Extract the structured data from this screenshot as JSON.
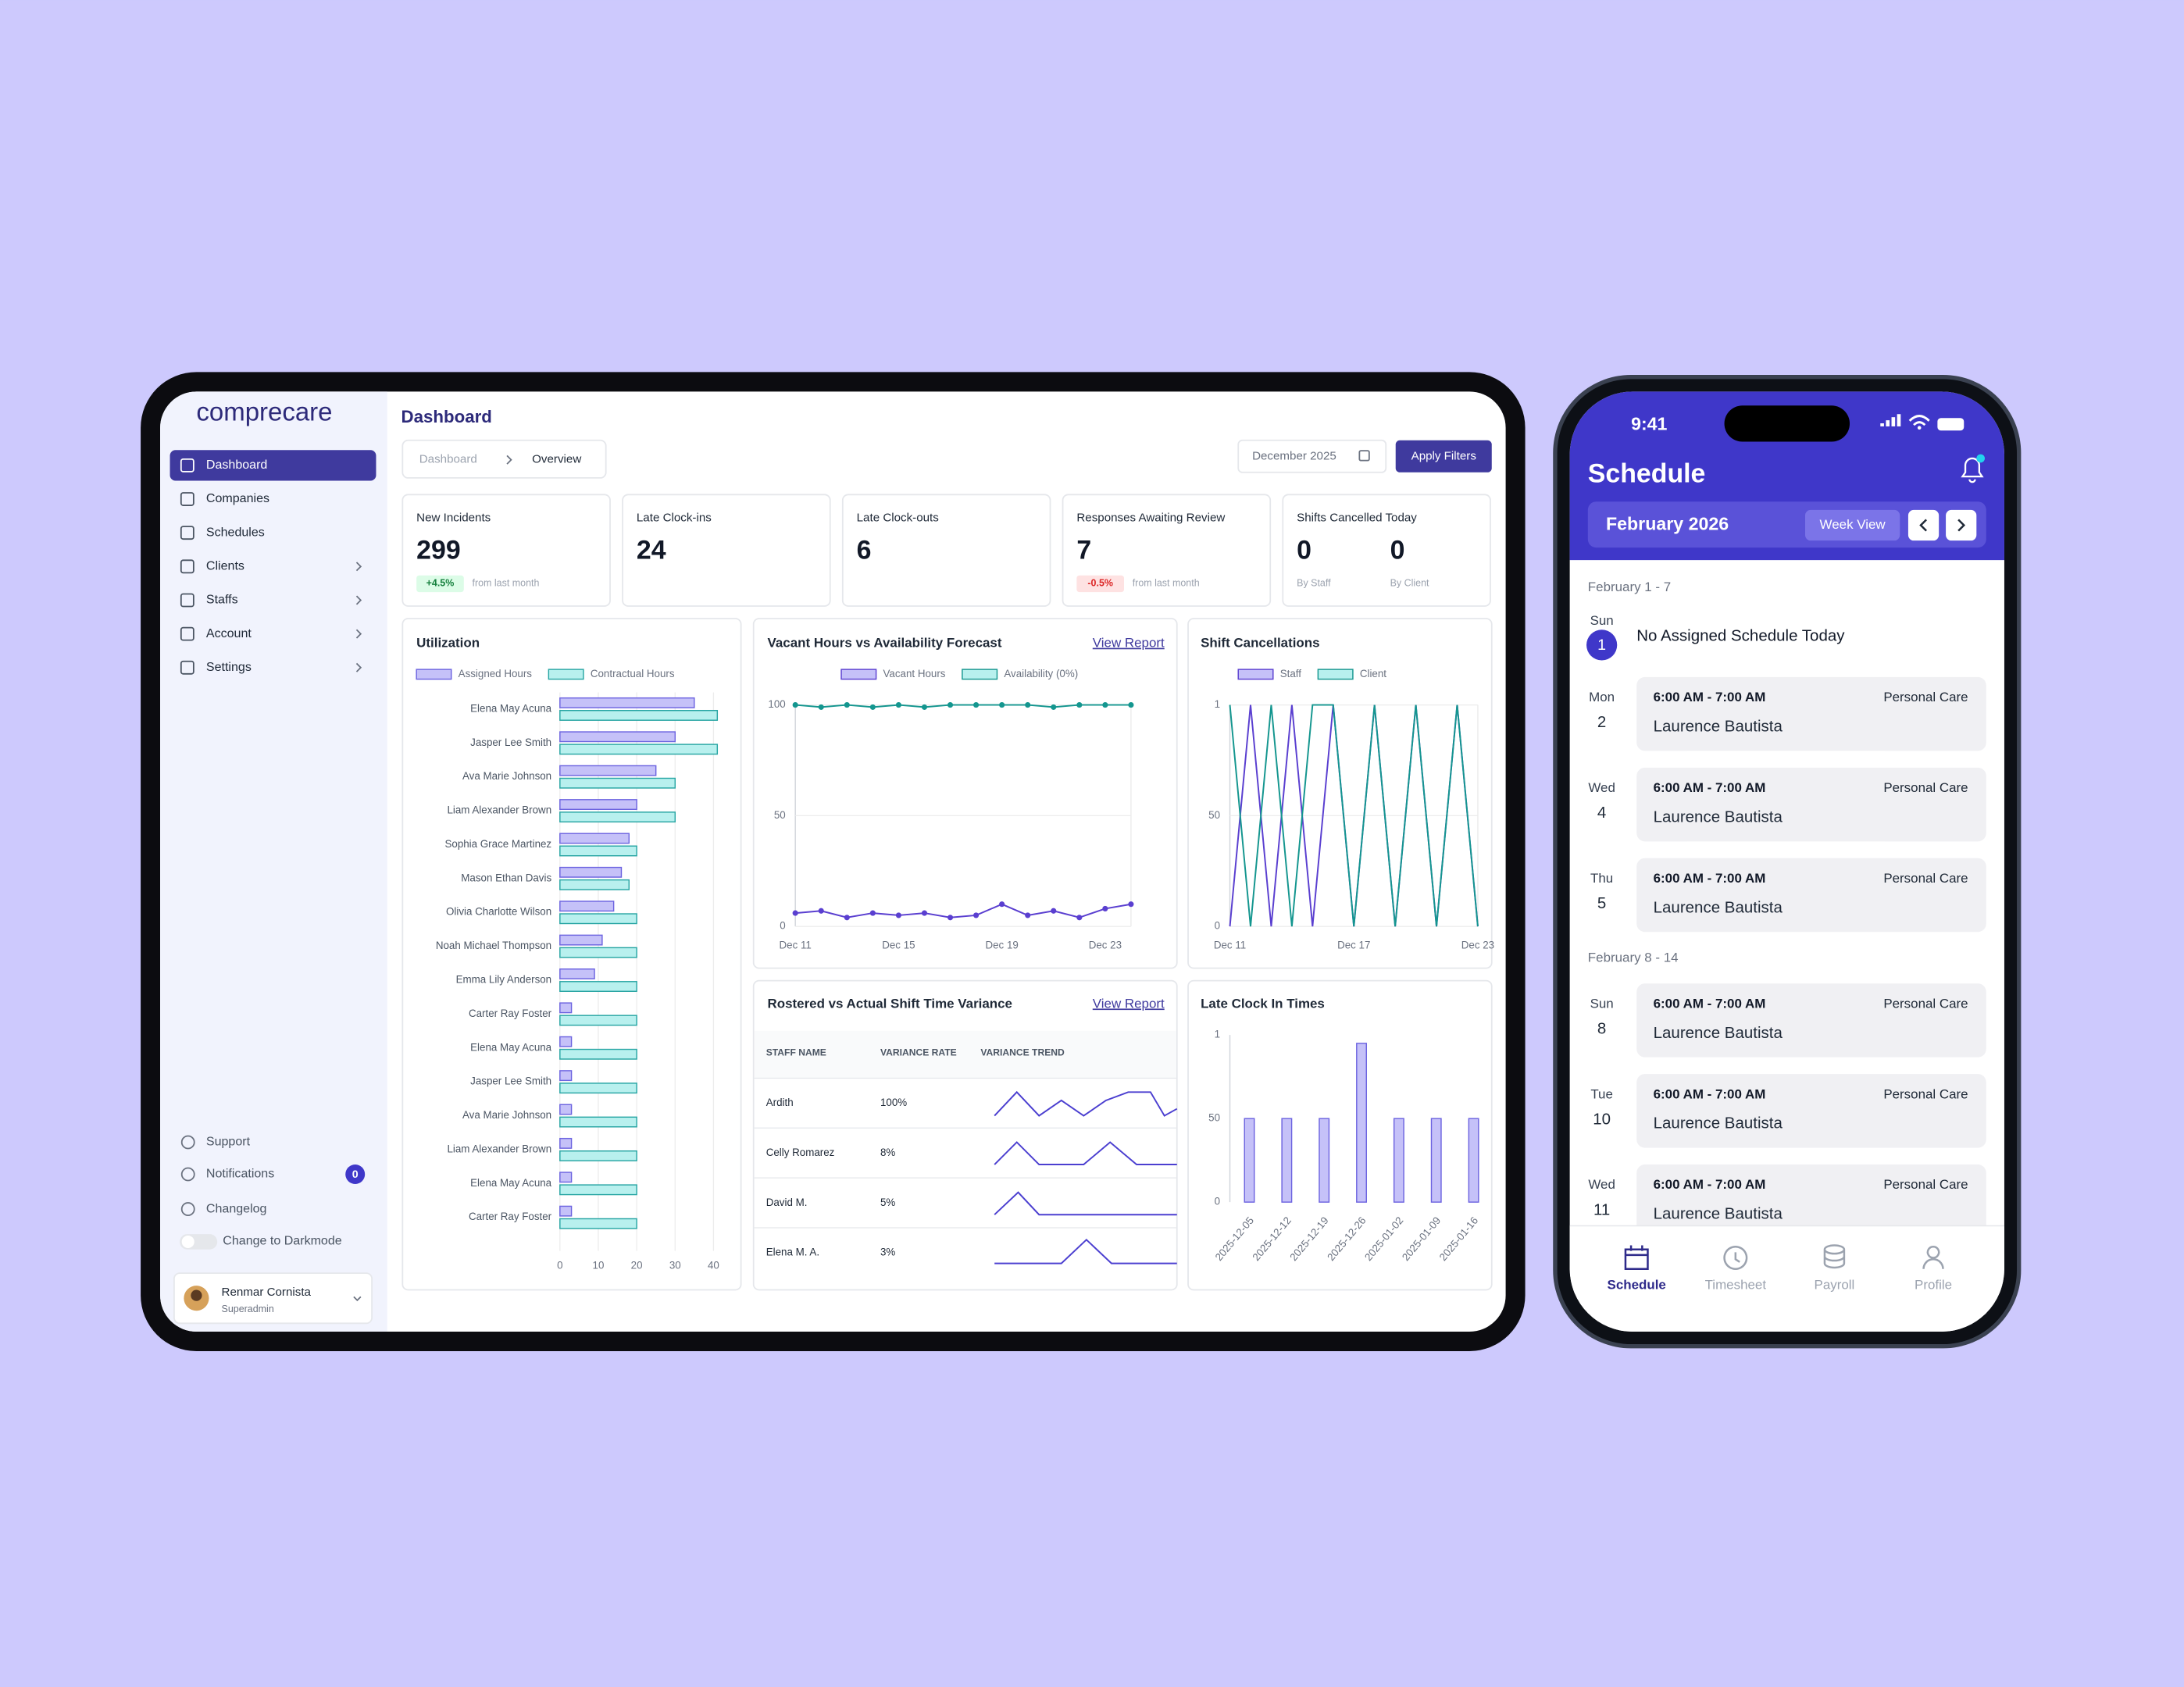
{
  "sidebar": {
    "brand": "comprecare",
    "nav": [
      {
        "label": "Dashboard",
        "active": true,
        "has_submenu": false
      },
      {
        "label": "Companies",
        "active": false,
        "has_submenu": false
      },
      {
        "label": "Schedules",
        "active": false,
        "has_submenu": false
      },
      {
        "label": "Clients",
        "active": false,
        "has_submenu": true
      },
      {
        "label": "Staffs",
        "active": false,
        "has_submenu": true
      },
      {
        "label": "Account",
        "active": false,
        "has_submenu": true
      },
      {
        "label": "Settings",
        "active": false,
        "has_submenu": true
      }
    ],
    "support": "Support",
    "notifications": "Notifications",
    "notifications_count": 0,
    "changelog": "Changelog",
    "darkmode": "Change to Darkmode",
    "user": {
      "name": "Renmar Cornista",
      "role": "Superadmin"
    }
  },
  "header": {
    "title": "Dashboard",
    "breadcrumb": [
      "Dashboard",
      "Overview"
    ],
    "date": "December 2025",
    "apply": "Apply Filters"
  },
  "stats": [
    {
      "title": "New Incidents",
      "value": 299,
      "change": "+4.5%",
      "trend": "up",
      "note": "from last month"
    },
    {
      "title": "Late Clock-ins",
      "value": 24
    },
    {
      "title": "Late Clock-outs",
      "value": 6
    },
    {
      "title": "Responses Awaiting Review",
      "value": 7,
      "change": "-0.5%",
      "trend": "down",
      "note": "from last month"
    }
  ],
  "cancelled_today": {
    "title": "Shifts Cancelled Today",
    "items": [
      {
        "value": 0,
        "label": "By Staff"
      },
      {
        "value": 0,
        "label": "By Client"
      }
    ]
  },
  "chart_data": [
    {
      "type": "bar",
      "orientation": "horizontal",
      "title": "Utilization",
      "categories": [
        "Elena May Acuna",
        "Jasper Lee Smith",
        "Ava Marie Johnson",
        "Liam Alexander Brown",
        "Sophia Grace Martinez",
        "Mason Ethan Davis",
        "Olivia Charlotte Wilson",
        "Noah Michael Thompson",
        "Emma Lily Anderson",
        "Carter Ray Foster",
        "Elena May Acuna",
        "Jasper Lee Smith",
        "Ava Marie Johnson",
        "Liam Alexander Brown",
        "Elena May Acuna",
        "Carter Ray Foster"
      ],
      "series": [
        {
          "name": "Assigned Hours",
          "color": "#6c63e0",
          "fill": "#c5c1f8",
          "values": [
            35,
            30,
            25,
            20,
            18,
            16,
            14,
            11,
            9,
            3,
            3,
            3,
            3,
            3,
            3,
            3
          ]
        },
        {
          "name": "Contractual Hours",
          "color": "#27a5a3",
          "fill": "#b8f0ee",
          "values": [
            41,
            41,
            30,
            30,
            20,
            18,
            20,
            20,
            20,
            20,
            20,
            20,
            20,
            20,
            20,
            20
          ]
        }
      ],
      "xlim": [
        0,
        41
      ],
      "xticks": [
        0,
        10,
        20,
        30,
        40
      ],
      "grid": true
    },
    {
      "type": "line",
      "title": "Vacant Hours vs Availability Forecast",
      "link": "View Report",
      "categories": [
        "Dec 11",
        null,
        null,
        null,
        "Dec 15",
        null,
        null,
        null,
        "Dec 19",
        null,
        null,
        null,
        "Dec 23",
        null
      ],
      "series": [
        {
          "name": "Vacant Hours",
          "color": "#5a3fd0",
          "fill": "#c5c1f8",
          "values": [
            6,
            7,
            4,
            6,
            5,
            6,
            4,
            5,
            10,
            5,
            7,
            4,
            8,
            10
          ]
        },
        {
          "name": "Availability (0%)",
          "color": "#14968f",
          "fill": "#b8f0ee",
          "values": [
            100,
            99,
            100,
            99,
            100,
            99,
            100,
            100,
            100,
            100,
            99,
            100,
            100,
            100
          ]
        }
      ],
      "ylim": [
        0,
        100
      ],
      "yticks": [
        0,
        50,
        100
      ],
      "markers": true,
      "grid": true
    },
    {
      "type": "line",
      "title": "Shift Cancellations",
      "categories": [
        "Dec 11",
        null,
        null,
        null,
        null,
        null,
        "Dec 17",
        null,
        null,
        null,
        null,
        null,
        "Dec 23"
      ],
      "series": [
        {
          "name": "Staff",
          "color": "#5a3fd0",
          "fill": "#c5c1f8",
          "values": [
            0,
            100,
            0,
            100,
            0,
            100,
            0,
            100,
            0,
            100,
            0,
            100,
            0
          ]
        },
        {
          "name": "Client",
          "color": "#14968f",
          "fill": "#b8f0ee",
          "values": [
            100,
            0,
            100,
            0,
            100,
            100,
            0,
            100,
            0,
            100,
            0,
            100,
            0
          ]
        }
      ],
      "ylim": [
        0,
        100
      ],
      "yticks": [
        0,
        50,
        {
          "value": 100,
          "label": "1"
        }
      ],
      "markers": false,
      "grid": true
    },
    {
      "type": "bar",
      "orientation": "vertical",
      "title": "Late Clock In Times",
      "categories": [
        "2025-12-05",
        "2025-12-12",
        "2025-12-19",
        "2025-12-26",
        "2025-01-02",
        "2025-01-09",
        "2025-01-16"
      ],
      "values": [
        50,
        50,
        50,
        95,
        50,
        50,
        50
      ],
      "color": "#6c63e0",
      "fill": "#c5c1f8",
      "ylim": [
        0,
        100
      ],
      "yticks": [
        0,
        50,
        {
          "value": 100,
          "label": "1"
        }
      ],
      "grid": false
    }
  ],
  "variance_table": {
    "title": "Rostered vs Actual Shift Time Variance",
    "link": "View Report",
    "columns": [
      "STAFF NAME",
      "VARIANCE RATE",
      "VARIANCE TREND"
    ],
    "rows": [
      [
        "Ardith",
        "100%"
      ],
      [
        "Celly Romarez",
        "8%"
      ],
      [
        "David M.",
        "5%"
      ],
      [
        "Elena M. A.",
        "3%"
      ]
    ]
  },
  "phone": {
    "time": "9:41",
    "title": "Schedule",
    "month": "February 2026",
    "view": "Week View",
    "groups": [
      {
        "label": "February 1 - 7",
        "days": [
          {
            "day": "Sun",
            "date": 1,
            "today": true,
            "empty": "No Assigned Schedule Today"
          },
          {
            "day": "Mon",
            "date": 2,
            "time": "6:00 AM - 7:00 AM",
            "service": "Personal Care",
            "staff": "Laurence Bautista"
          },
          {
            "day": "Wed",
            "date": 4,
            "time": "6:00 AM - 7:00 AM",
            "service": "Personal Care",
            "staff": "Laurence Bautista"
          },
          {
            "day": "Thu",
            "date": 5,
            "time": "6:00 AM - 7:00 AM",
            "service": "Personal Care",
            "staff": "Laurence Bautista"
          }
        ]
      },
      {
        "label": "February 8 - 14",
        "days": [
          {
            "day": "Sun",
            "date": 8,
            "time": "6:00 AM - 7:00 AM",
            "service": "Personal Care",
            "staff": "Laurence Bautista"
          },
          {
            "day": "Tue",
            "date": 10,
            "time": "6:00 AM - 7:00 AM",
            "service": "Personal Care",
            "staff": "Laurence Bautista"
          },
          {
            "day": "Wed",
            "date": 11,
            "time": "6:00 AM - 7:00 AM",
            "service": "Personal Care",
            "staff": "Laurence Bautista"
          }
        ]
      }
    ],
    "tabs": [
      {
        "label": "Schedule",
        "active": true
      },
      {
        "label": "Timesheet",
        "active": false
      },
      {
        "label": "Payroll",
        "active": false
      },
      {
        "label": "Profile",
        "active": false
      }
    ]
  }
}
